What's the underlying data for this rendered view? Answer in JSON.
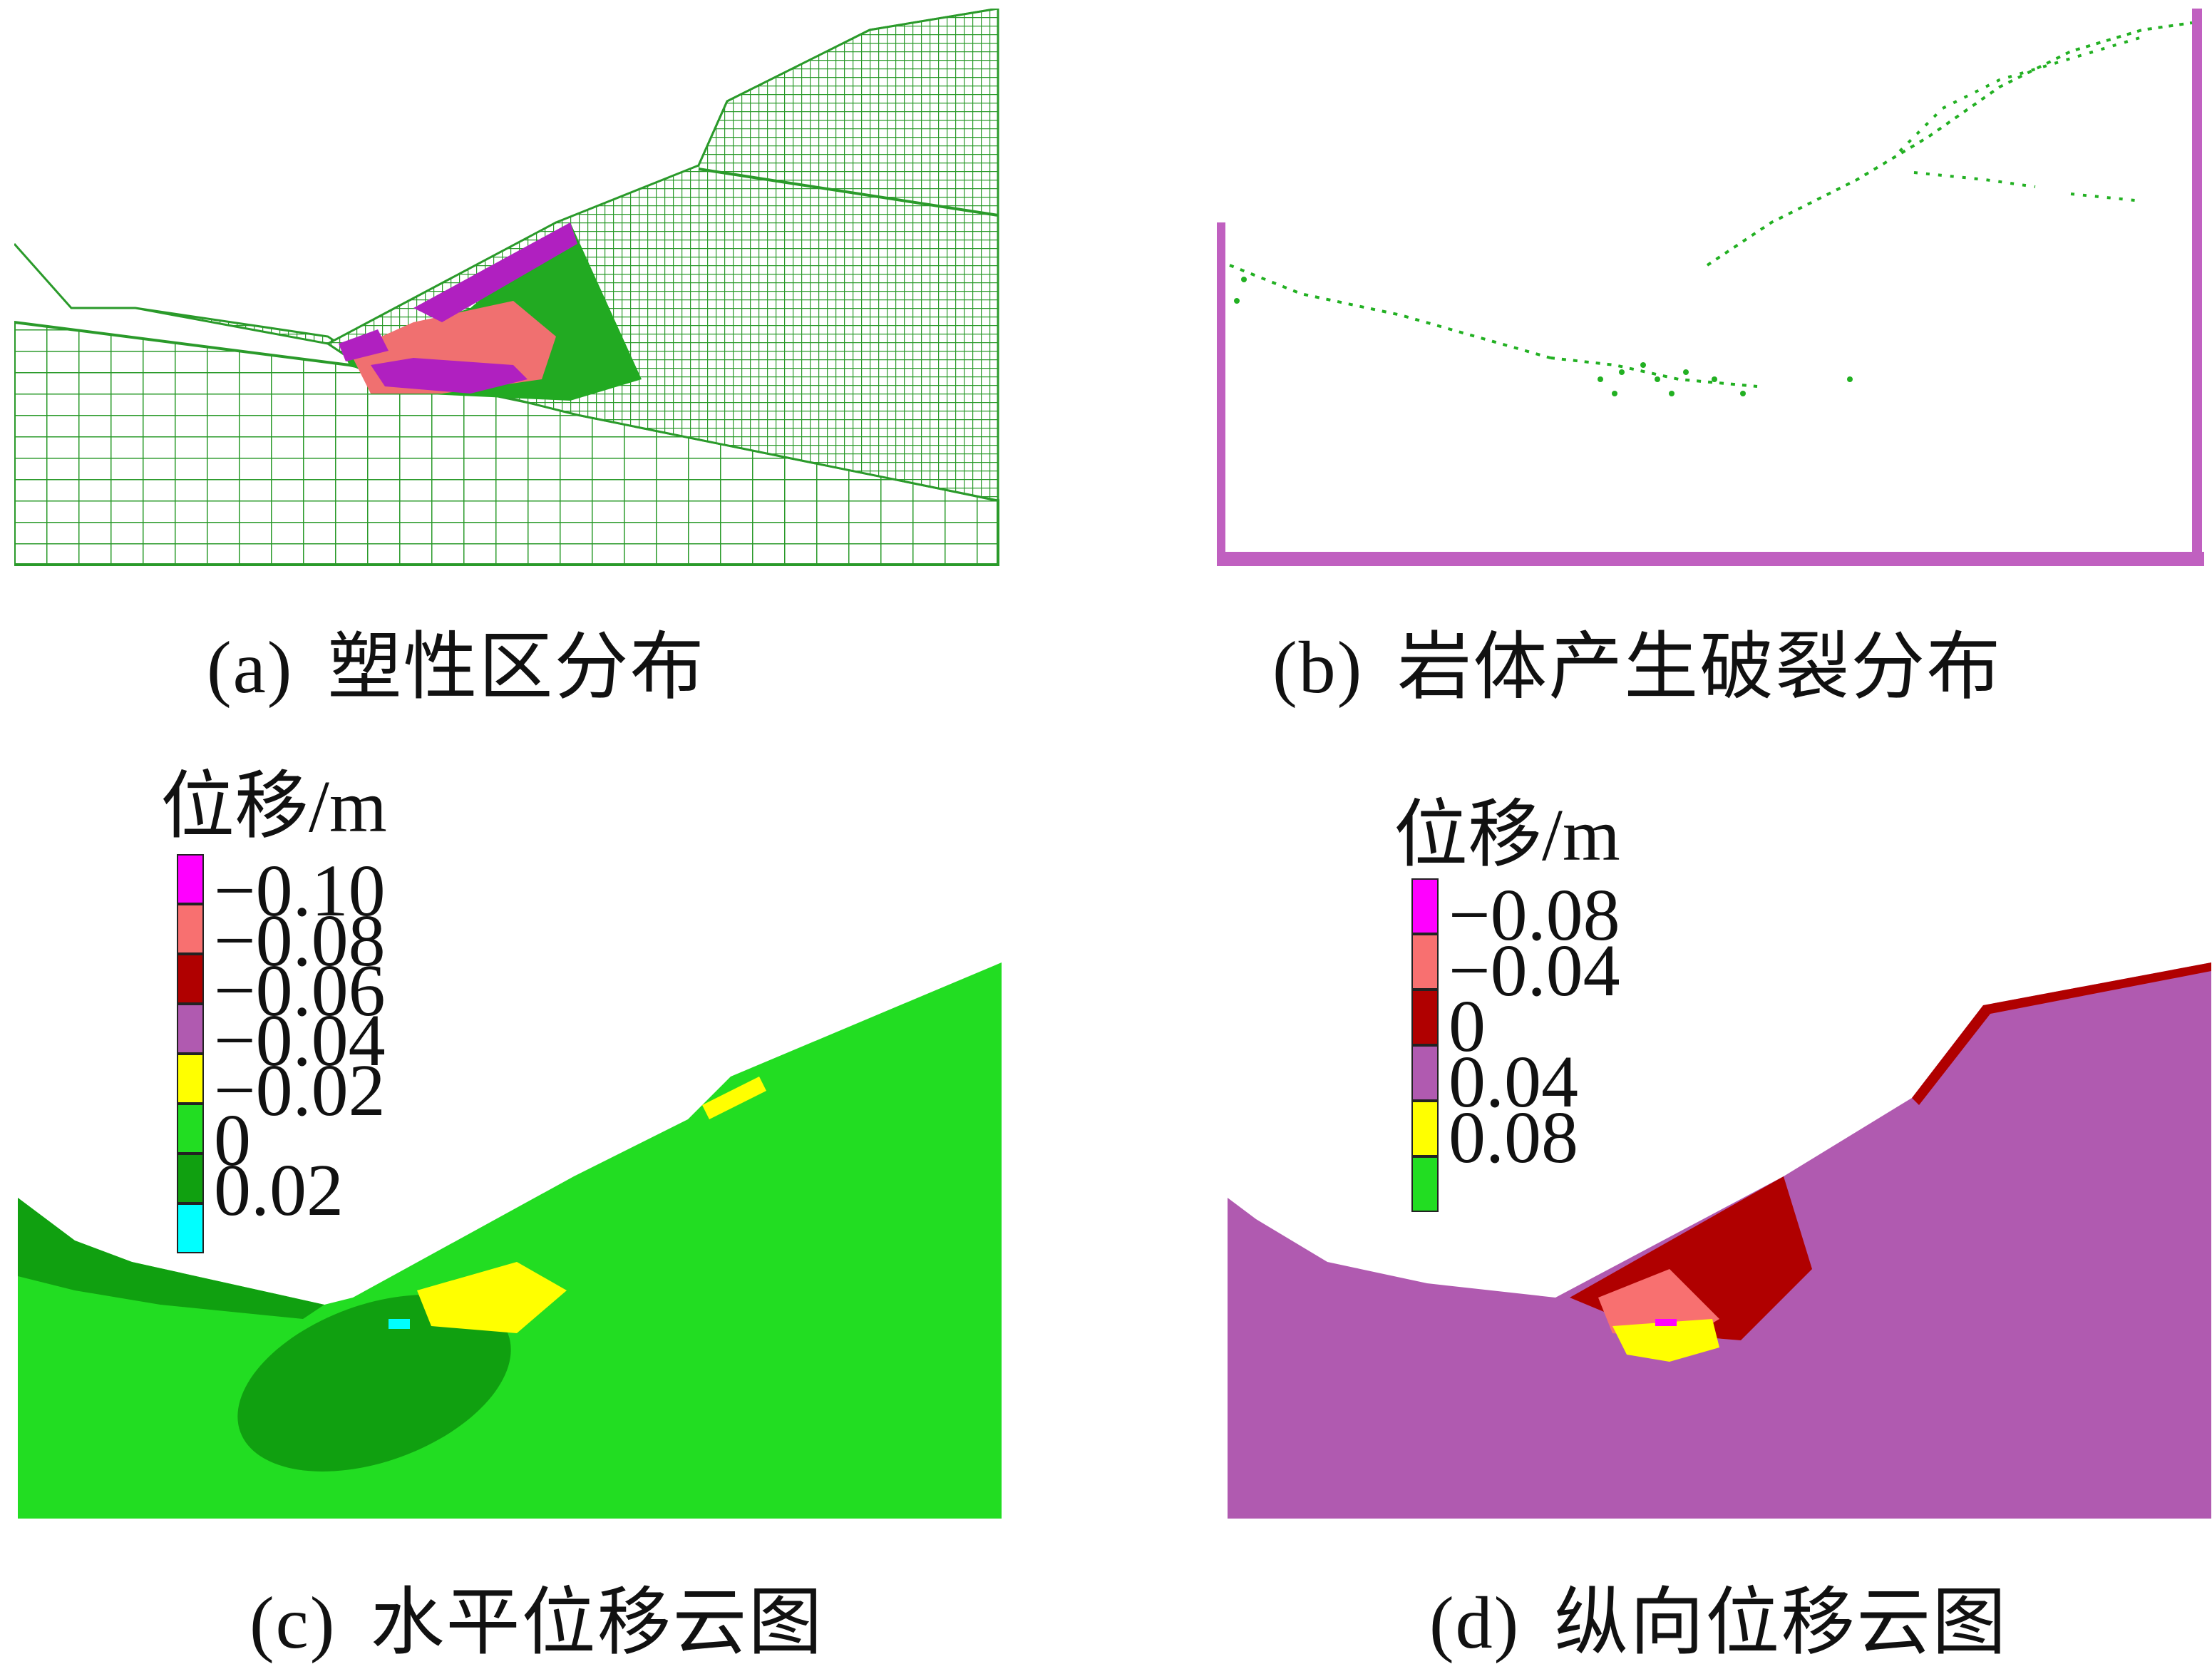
{
  "panels": [
    {
      "id": "a",
      "label": "(a)",
      "title": "塑性区分布"
    },
    {
      "id": "b",
      "label": "(b)",
      "title": "岩体产生破裂分布"
    },
    {
      "id": "c",
      "label": "(c)",
      "title": "水平位移云图"
    },
    {
      "id": "d",
      "label": "(d)",
      "title": "纵向位移云图"
    }
  ],
  "legend_c": {
    "title": "位移/m",
    "entries": [
      {
        "value": "−0.10",
        "color": "#ff00ff"
      },
      {
        "value": "−0.08",
        "color": "#f87070"
      },
      {
        "value": "−0.06",
        "color": "#b00000"
      },
      {
        "value": "−0.04",
        "color": "#b05ab0"
      },
      {
        "value": "−0.02",
        "color": "#ffff00"
      },
      {
        "value": "0",
        "color": "#22dd22"
      },
      {
        "value": "0.02",
        "color": "#10a010"
      },
      {
        "value": "",
        "color": "#00ffff"
      }
    ]
  },
  "legend_d": {
    "title": "位移/m",
    "entries": [
      {
        "value": "−0.08",
        "color": "#ff00ff"
      },
      {
        "value": "−0.04",
        "color": "#f87070"
      },
      {
        "value": "0",
        "color": "#b00000"
      },
      {
        "value": "0.04",
        "color": "#b05ab0"
      },
      {
        "value": "0.08",
        "color": "#ffff00"
      },
      {
        "value": "",
        "color": "#22dd22"
      }
    ]
  },
  "colors": {
    "mesh_green": "#2a9a2a",
    "plastic_magenta": "#b020c0",
    "plastic_salmon": "#f07070",
    "plastic_green": "#22aa22",
    "crack_green": "#22b022",
    "boundary_purple": "#c060c0",
    "bright_green": "#22dd22",
    "dark_green": "#10a010",
    "yellow": "#ffff00",
    "purple": "#b05ab0",
    "dark_red": "#b00000",
    "salmon": "#f87070",
    "magenta": "#ff00ff",
    "cyan": "#00ffff"
  }
}
